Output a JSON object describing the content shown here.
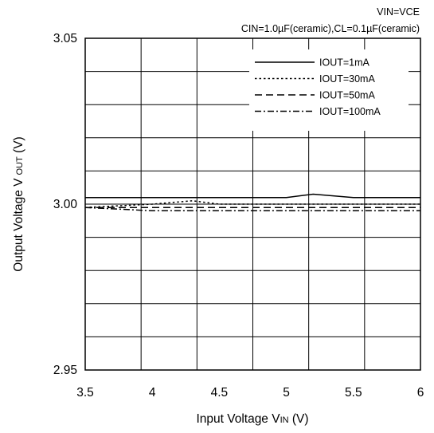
{
  "chart_data": {
    "type": "line",
    "conditions": [
      "VIN=VCE",
      "CIN=1.0µF(ceramic),CL=0.1µF(ceramic)"
    ],
    "xlabel": {
      "main": "Input Voltage V",
      "sub": "IN",
      "unit": " (V)"
    },
    "ylabel": {
      "main": "Output Voltage V",
      "sub": "OUT",
      "unit": " (V)"
    },
    "xlim": [
      3.5,
      6
    ],
    "ylim": [
      2.95,
      3.05
    ],
    "x_ticks": [
      "3.5",
      "4",
      "4.5",
      "5",
      "5.5",
      "6"
    ],
    "x_tick_values": [
      3.5,
      4,
      4.5,
      5,
      5.5,
      6
    ],
    "y_ticks": [
      "3.05",
      "3.00",
      "2.95"
    ],
    "y_tick_values": [
      3.05,
      3.0,
      2.95
    ],
    "grid": {
      "x_divisions": 6,
      "y_divisions": 10
    },
    "legend_position": "top-right",
    "series": [
      {
        "name": "IOUT=1mA",
        "dash": "solid",
        "x": [
          3.5,
          4.0,
          4.5,
          5.0,
          5.2,
          5.5,
          5.8,
          6.0
        ],
        "y": [
          3.002,
          3.002,
          3.002,
          3.002,
          3.003,
          3.002,
          3.002,
          3.002
        ]
      },
      {
        "name": "IOUT=30mA",
        "dash": "dotted",
        "x": [
          3.5,
          4.0,
          4.3,
          4.5,
          5.0,
          5.5,
          5.8,
          6.0
        ],
        "y": [
          2.999,
          3.0,
          3.001,
          3.0,
          3.0,
          3.0,
          3.0,
          3.0
        ]
      },
      {
        "name": "IOUT=50mA",
        "dash": "dashed",
        "x": [
          3.5,
          4.0,
          4.5,
          5.0,
          5.5,
          6.0
        ],
        "y": [
          2.999,
          2.999,
          2.999,
          2.999,
          2.999,
          2.999
        ]
      },
      {
        "name": "IOUT=100mA",
        "dash": "dashdot",
        "x": [
          3.5,
          4.0,
          4.5,
          5.0,
          5.5,
          6.0
        ],
        "y": [
          2.999,
          2.998,
          2.998,
          2.998,
          2.998,
          2.998
        ]
      }
    ]
  }
}
